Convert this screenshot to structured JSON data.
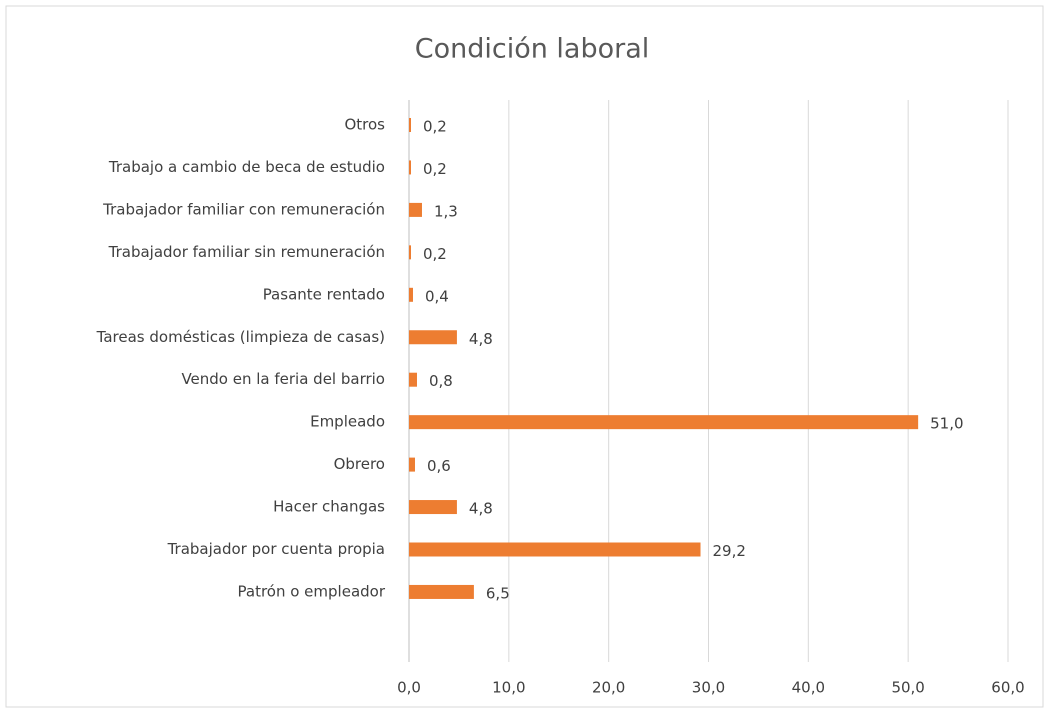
{
  "chart_data": {
    "type": "bar",
    "orientation": "horizontal",
    "title": "Condición laboral",
    "categories": [
      "Otros",
      "Trabajo a cambio de beca de estudio",
      "Trabajador familiar con remuneración",
      "Trabajador familiar sin remuneración",
      "Pasante rentado",
      "Tareas domésticas (limpieza de casas)",
      "Vendo en la feria del barrio",
      "Empleado",
      "Obrero",
      "Hacer changas",
      "Trabajador por cuenta propia",
      "Patrón o empleador"
    ],
    "values": [
      0.2,
      0.2,
      1.3,
      0.2,
      0.4,
      4.8,
      0.8,
      51.0,
      0.6,
      4.8,
      29.2,
      6.5
    ],
    "value_labels": [
      "0,2",
      "0,2",
      "1,3",
      "0,2",
      "0,4",
      "4,8",
      "0,8",
      "51,0",
      "0,6",
      "4,8",
      "29,2",
      "6,5"
    ],
    "color": "#ed7d31",
    "xlim": [
      0,
      60
    ],
    "xticks": [
      {
        "value": 0,
        "label": "0,0"
      },
      {
        "value": 10,
        "label": "10,0"
      },
      {
        "value": 20,
        "label": "20,0"
      },
      {
        "value": 30,
        "label": "30,0"
      },
      {
        "value": 40,
        "label": "40,0"
      },
      {
        "value": 50,
        "label": "50,0"
      },
      {
        "value": 60,
        "label": "60,0"
      }
    ],
    "grid": true
  }
}
